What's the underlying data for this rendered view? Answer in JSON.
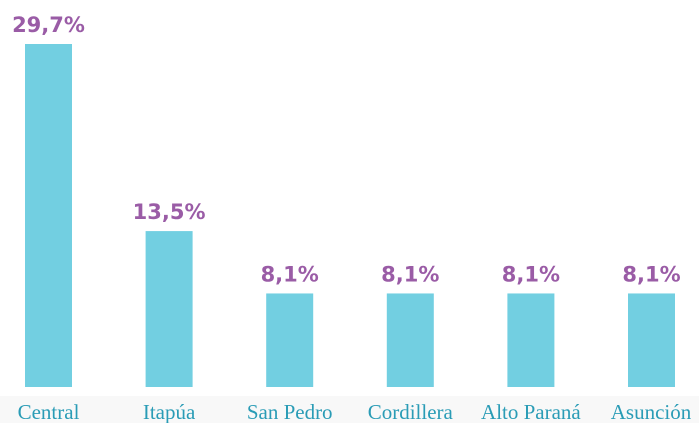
{
  "chart_data": {
    "type": "bar",
    "categories": [
      "Central",
      "Itapúa",
      "San Pedro",
      "Cordillera",
      "Alto Paraná",
      "Asunción"
    ],
    "values": [
      29.7,
      13.5,
      8.1,
      8.1,
      8.1,
      8.1
    ],
    "value_labels": [
      "29,7%",
      "13,5%",
      "8,1%",
      "8,1%",
      "8,1%",
      "8,1%"
    ],
    "color": "#72cfe1"
  }
}
